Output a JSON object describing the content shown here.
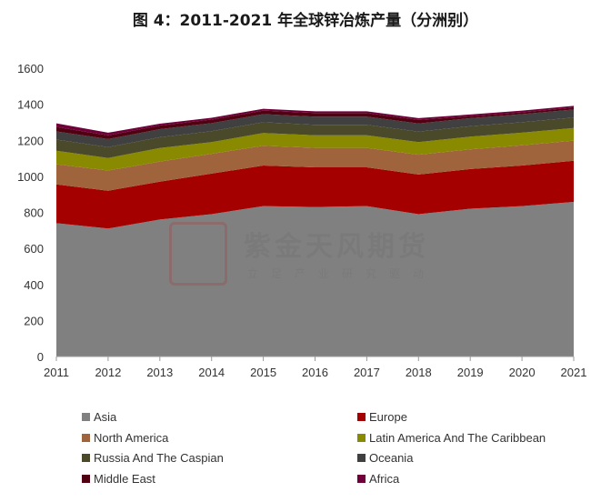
{
  "title": "图 4：2011-2021 年全球锌冶炼产量（分洲别）",
  "watermark": {
    "name": "紫金天风期货",
    "slogan": "立足产业研究驱动"
  },
  "chart_data": {
    "type": "area",
    "stacked": true,
    "x": [
      "2011",
      "2012",
      "2013",
      "2014",
      "2015",
      "2016",
      "2017",
      "2018",
      "2019",
      "2020",
      "2021"
    ],
    "ylim": [
      0,
      1600
    ],
    "yticks": [
      0,
      200,
      400,
      600,
      800,
      1000,
      1200,
      1400,
      1600
    ],
    "grid": false,
    "legend_position": "bottom",
    "series": [
      {
        "name": "Asia",
        "color": "#808080",
        "values": [
          740,
          710,
          760,
          790,
          835,
          830,
          835,
          790,
          820,
          835,
          858
        ]
      },
      {
        "name": "Europe",
        "color": "#a50000",
        "values": [
          215,
          210,
          210,
          225,
          225,
          220,
          215,
          220,
          220,
          225,
          228
        ]
      },
      {
        "name": "North America",
        "color": "#a0643c",
        "values": [
          112,
          112,
          112,
          110,
          110,
          108,
          108,
          110,
          110,
          112,
          112
        ]
      },
      {
        "name": "Latin America And The Caribbean",
        "color": "#8a8a00",
        "values": [
          75,
          70,
          75,
          65,
          70,
          70,
          70,
          70,
          70,
          70,
          70
        ]
      },
      {
        "name": "Russia And The Caspian",
        "color": "#4a4a2a",
        "values": [
          62,
          60,
          60,
          60,
          60,
          58,
          58,
          58,
          58,
          58,
          58
        ]
      },
      {
        "name": "Oceania",
        "color": "#404040",
        "values": [
          45,
          45,
          45,
          45,
          45,
          45,
          45,
          45,
          45,
          45,
          45
        ]
      },
      {
        "name": "Middle East",
        "color": "#500010",
        "values": [
          25,
          20,
          20,
          20,
          20,
          20,
          20,
          20,
          10,
          10,
          10
        ]
      },
      {
        "name": "Africa",
        "color": "#70003a",
        "values": [
          20,
          15,
          10,
          10,
          10,
          10,
          10,
          10,
          10,
          10,
          10
        ]
      }
    ]
  }
}
